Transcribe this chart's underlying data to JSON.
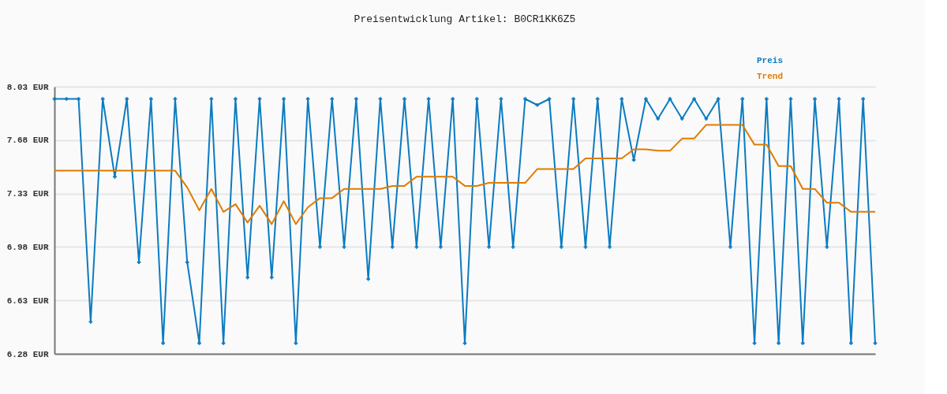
{
  "chart_data": {
    "type": "line",
    "title": "Preisentwicklung Artikel: B0CR1KK6Z5",
    "categories": [
      null,
      null,
      null,
      null,
      null,
      null,
      null,
      null,
      null,
      null,
      null,
      null,
      null,
      null,
      null,
      null,
      null,
      null,
      null,
      null,
      null,
      null,
      null,
      null,
      null,
      null,
      null,
      null,
      null,
      null,
      null,
      null,
      null,
      null,
      null,
      null,
      null,
      null,
      null,
      null,
      null,
      null,
      null,
      null,
      null,
      null,
      null,
      null,
      null,
      null,
      null,
      null,
      null,
      null,
      null,
      null,
      null,
      null,
      null,
      null,
      null,
      null,
      null,
      null,
      null,
      null,
      null,
      null,
      null
    ],
    "series": [
      {
        "name": "Preis",
        "color": "#0b7bc1",
        "marker": "cross",
        "values": [
          7.95,
          7.95,
          7.95,
          6.49,
          7.95,
          7.44,
          7.95,
          6.88,
          7.95,
          6.35,
          7.95,
          6.88,
          6.35,
          7.95,
          6.35,
          7.95,
          6.78,
          7.95,
          6.78,
          7.95,
          6.35,
          7.95,
          6.98,
          7.95,
          6.98,
          7.95,
          6.77,
          7.95,
          6.98,
          7.95,
          6.98,
          7.95,
          6.98,
          7.95,
          6.35,
          7.95,
          6.98,
          7.95,
          6.98,
          7.95,
          7.91,
          7.95,
          6.98,
          7.95,
          6.98,
          7.95,
          6.98,
          7.95,
          7.55,
          7.95,
          7.82,
          7.95,
          7.82,
          7.95,
          7.82,
          7.95,
          6.98,
          7.95,
          6.35,
          7.95,
          6.35,
          7.95,
          6.35,
          7.95,
          6.98,
          7.95,
          6.35,
          7.95,
          6.35
        ]
      },
      {
        "name": "Trend",
        "color": "#e07b00",
        "marker": "none",
        "values": [
          7.48,
          7.48,
          7.48,
          7.48,
          7.48,
          7.48,
          7.48,
          7.48,
          7.48,
          7.48,
          7.48,
          7.37,
          7.22,
          7.36,
          7.21,
          7.26,
          7.14,
          7.25,
          7.13,
          7.28,
          7.13,
          7.24,
          7.3,
          7.3,
          7.36,
          7.36,
          7.36,
          7.36,
          7.38,
          7.38,
          7.44,
          7.44,
          7.44,
          7.44,
          7.38,
          7.38,
          7.4,
          7.4,
          7.4,
          7.4,
          7.49,
          7.49,
          7.49,
          7.49,
          7.56,
          7.56,
          7.56,
          7.56,
          7.62,
          7.62,
          7.61,
          7.61,
          7.69,
          7.69,
          7.78,
          7.78,
          7.78,
          7.78,
          7.65,
          7.65,
          7.51,
          7.51,
          7.36,
          7.36,
          7.27,
          7.27,
          7.21,
          7.21,
          7.21
        ]
      }
    ],
    "ylim": [
      6.28,
      8.03
    ],
    "yticks": [
      {
        "value": 6.28,
        "label": "6.28 EUR"
      },
      {
        "value": 6.63,
        "label": "6.63 EUR"
      },
      {
        "value": 6.98,
        "label": "6.98 EUR"
      },
      {
        "value": 7.33,
        "label": "7.33 EUR"
      },
      {
        "value": 7.68,
        "label": "7.68 EUR"
      },
      {
        "value": 8.03,
        "label": "8.03 EUR"
      }
    ],
    "grid": "y",
    "legend": "top right",
    "tick_labels": "y",
    "line_style": "solid"
  }
}
